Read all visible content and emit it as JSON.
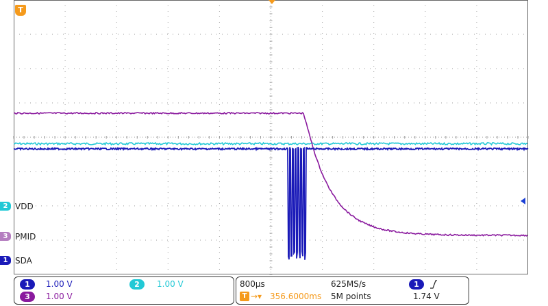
{
  "colors": {
    "ch1": "#1a1ab8",
    "ch2": "#22c9d6",
    "ch3": "#8a1a9e",
    "trigger": "#f59a1c",
    "grid": "#9a9a9a",
    "text": "#222222"
  },
  "channels": [
    {
      "id": "1",
      "name": "SDA",
      "scale": "1.00 V",
      "color": "#1a1ab8"
    },
    {
      "id": "2",
      "name": "VDD",
      "scale": "1.00 V",
      "color": "#22c9d6"
    },
    {
      "id": "3",
      "name": "PMID",
      "scale": "1.00 V",
      "color": "#8a1a9e"
    }
  ],
  "trigger": {
    "marker": "T",
    "position": "356.6000ms",
    "source": "1",
    "slope": "rising",
    "level": "1.74 V"
  },
  "timebase": {
    "time_per_div": "800µs",
    "sample_rate": "625MS/s",
    "record_length": "5M points"
  },
  "icons": {
    "trigger_flag": "trigger-flag-icon",
    "trigger_slope": "rising-edge-icon",
    "level_arrow": "trigger-level-arrow-icon"
  }
}
